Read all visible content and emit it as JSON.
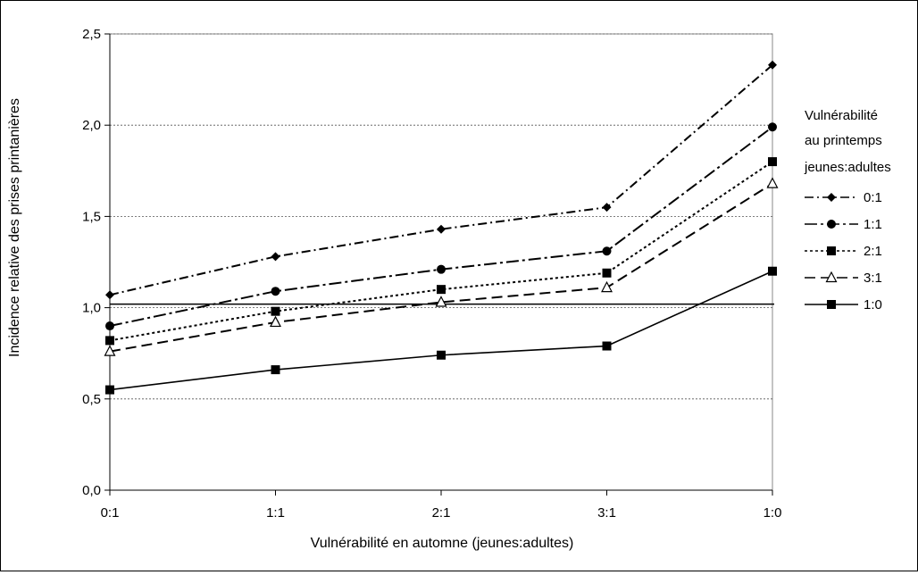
{
  "chart_data": {
    "type": "line",
    "categories": [
      "0:1",
      "1:1",
      "2:1",
      "3:1",
      "1:0"
    ],
    "xlabel": "Vulnérabilité en automne (jeunes:adultes)",
    "ylabel": "Incidence relative des prises printanières",
    "ylim": [
      0,
      2.5
    ],
    "yticks": [
      "0,0",
      "0,5",
      "1,0",
      "1,5",
      "2,0",
      "2,5"
    ],
    "grid": "horizontal-dotted",
    "legend_position": "right",
    "legend_title_lines": [
      "Vulnérabilité",
      "au printemps",
      "jeunes:adultes"
    ],
    "reference_line": 1.0,
    "series": [
      {
        "name": "0:1",
        "values": [
          1.07,
          1.28,
          1.43,
          1.55,
          2.33
        ],
        "marker": "diamond",
        "dash": "dash-dot"
      },
      {
        "name": "1:1",
        "values": [
          0.9,
          1.09,
          1.21,
          1.31,
          1.99
        ],
        "marker": "circle",
        "dash": "long-dash-dot"
      },
      {
        "name": "2:1",
        "values": [
          0.82,
          0.98,
          1.1,
          1.19,
          1.8
        ],
        "marker": "square",
        "dash": "dot"
      },
      {
        "name": "3:1",
        "values": [
          0.76,
          0.92,
          1.03,
          1.11,
          1.68
        ],
        "marker": "triangle-open",
        "dash": "dash"
      },
      {
        "name": "1:0",
        "values": [
          0.55,
          0.66,
          0.74,
          0.79,
          1.2
        ],
        "marker": "square",
        "dash": "solid"
      }
    ],
    "colors": {
      "line": "#000000",
      "grid": "#555555",
      "plot_border": "#888888"
    }
  }
}
